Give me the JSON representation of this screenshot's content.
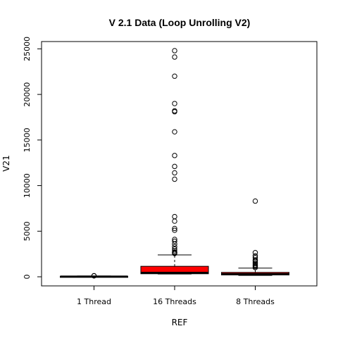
{
  "chart_data": {
    "type": "boxplot",
    "title": "V 2.1 Data (Loop Unrolling V2)",
    "xlabel": "REF",
    "ylabel": "V21",
    "categories": [
      "1 Thread",
      "16 Threads",
      "8 Threads"
    ],
    "ylim": [
      -1000,
      25800
    ],
    "yticks": [
      0,
      5000,
      10000,
      15000,
      20000,
      25000
    ],
    "box_fill": "#ff0000",
    "boxes": [
      {
        "category": "1 Thread",
        "min": 0,
        "q1": 10,
        "median": 30,
        "q3": 50,
        "max": 90,
        "outliers": [
          100,
          120
        ]
      },
      {
        "category": "16 Threads",
        "min": 300,
        "q1": 330,
        "median": 450,
        "q3": 1150,
        "max": 2400,
        "outliers": [
          2550,
          2600,
          2650,
          2700,
          2850,
          3050,
          3300,
          3600,
          3900,
          4100,
          5100,
          5300,
          6100,
          6600,
          10700,
          11400,
          12100,
          13300,
          15900,
          18100,
          18200,
          19000,
          22000,
          24100,
          24800
        ]
      },
      {
        "category": "8 Threads",
        "min": 150,
        "q1": 200,
        "median": 300,
        "q3": 480,
        "max": 950,
        "outliers": [
          1000,
          1100,
          1200,
          1300,
          1450,
          1600,
          1750,
          1850,
          2100,
          2300,
          2650,
          8300
        ]
      }
    ]
  }
}
